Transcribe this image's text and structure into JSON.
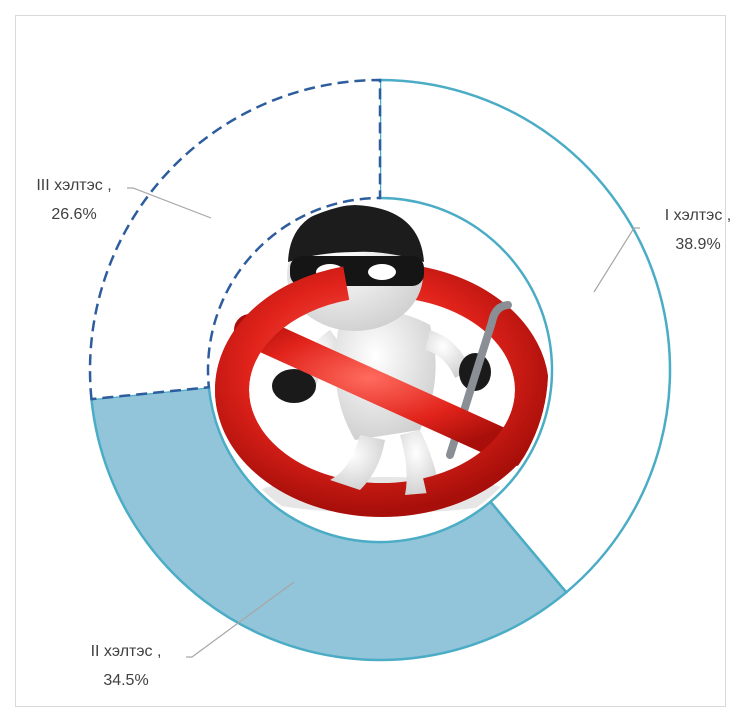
{
  "chart_data": {
    "type": "pie",
    "variant": "donut",
    "categories": [
      "I хэлтэс",
      "II хэлтэс",
      "III хэлтэс"
    ],
    "values": [
      38.9,
      34.5,
      26.6
    ],
    "labels": [
      {
        "name": "I хэлтэс ,",
        "value": "38.9%"
      },
      {
        "name": "II хэлтэс ,",
        "value": "34.5%"
      },
      {
        "name": "III хэлтэс ,",
        "value": "26.6%"
      }
    ],
    "legend": "none",
    "colors": {
      "slice_1_fill": "#ffffff",
      "slice_1_stroke": "#4bacc6",
      "slice_2_fill": "#92c5d9",
      "slice_2_stroke": "#4bacc6",
      "slice_3_fill": "#ffffff",
      "slice_3_stroke": "#2e5d9e",
      "leader_line": "#a6a6a6",
      "frame": "#d9d9d9"
    },
    "center_image": "burglar-prohibited-icon"
  }
}
